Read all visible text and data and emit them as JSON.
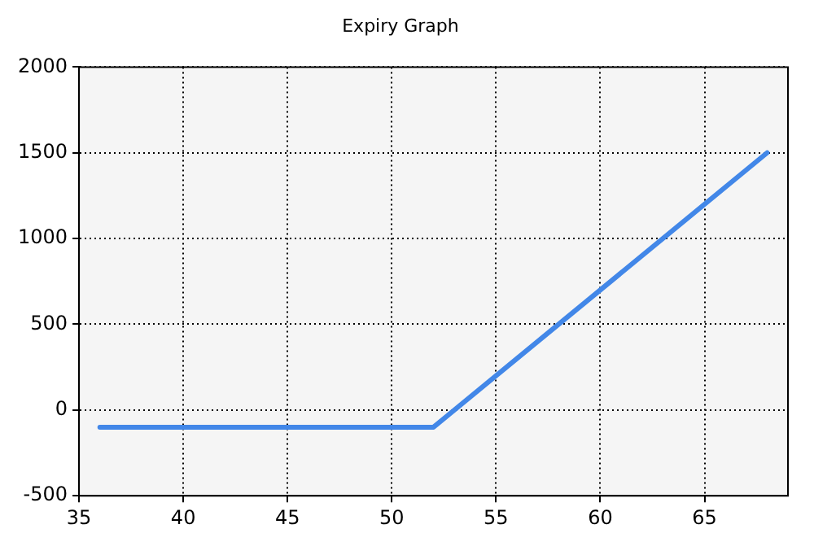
{
  "chart_data": {
    "type": "line",
    "title": "Expiry Graph",
    "x": [
      36,
      52,
      68
    ],
    "series": [
      {
        "color": "#4287e8",
        "values": [
          -100,
          -100,
          1500
        ]
      }
    ],
    "xlim": [
      35,
      69
    ],
    "xticks": [
      35,
      40,
      45,
      50,
      55,
      60,
      65
    ],
    "ylim": [
      -500,
      2000
    ],
    "yticks": [
      -500,
      0,
      500,
      1000,
      1500,
      2000
    ],
    "grid": true,
    "legend": false,
    "marker": "none",
    "line_style": "solid"
  }
}
